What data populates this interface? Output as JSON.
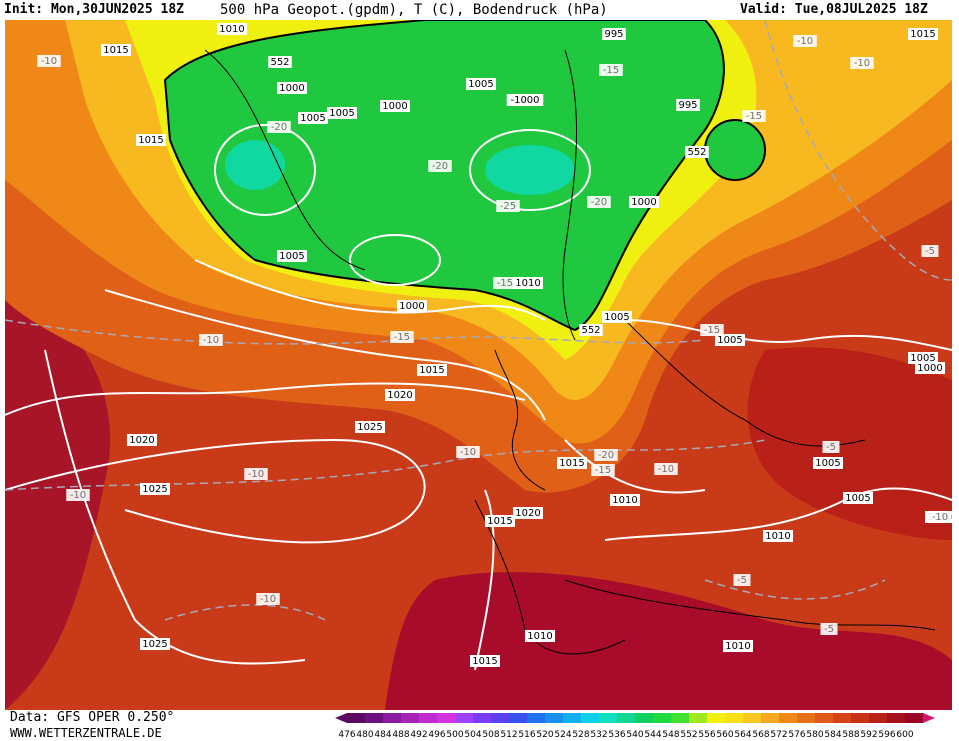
{
  "header": {
    "init": "Init: Mon,30JUN2025 18Z",
    "title": "500 hPa Geopot.(gpdm), T (C), Bodendruck (hPa)",
    "valid": "Valid: Tue,08JUL2025 18Z"
  },
  "footer": {
    "source": "Data: GFS OPER 0.250°",
    "website": "WWW.WETTERZENTRALE.DE"
  },
  "colorbar": {
    "ticks": [
      476,
      480,
      484,
      488,
      492,
      496,
      500,
      504,
      508,
      512,
      516,
      520,
      524,
      528,
      532,
      536,
      540,
      544,
      548,
      552,
      556,
      560,
      564,
      568,
      572,
      576,
      580,
      584,
      588,
      592,
      596,
      600
    ],
    "colors": [
      "#5a0a60",
      "#6e1080",
      "#8a1a9e",
      "#a623b8",
      "#c02ad0",
      "#d432e0",
      "#a040ff",
      "#7a3cf4",
      "#5a40ee",
      "#3a50ee",
      "#2070f0",
      "#1890f0",
      "#10b0f0",
      "#10d0e8",
      "#10e0c0",
      "#10d890",
      "#10d060",
      "#20d840",
      "#40e030",
      "#a0e820",
      "#f0f010",
      "#f8e018",
      "#f8c820",
      "#f8a820",
      "#f08818",
      "#e87018",
      "#e05818",
      "#d84018",
      "#c83018",
      "#b82018",
      "#a81020",
      "#980028"
    ]
  },
  "map": {
    "pressure_labels": [
      "1010",
      "1015",
      "552",
      "1000",
      "1005",
      "1005",
      "1000",
      "-1000",
      "995",
      "995",
      "552",
      "1000",
      "1005",
      "1005",
      "1015",
      "1000",
      "1015",
      "1010",
      "552",
      "1005",
      "1005",
      "1015",
      "1020",
      "1025",
      "1020",
      "1025",
      "1015",
      "1020",
      "1015",
      "1010",
      "1005",
      "1005",
      "1010",
      "1010",
      "1010",
      "1025",
      "1015",
      "1005",
      "1000",
      "1010"
    ],
    "temperature_labels": [
      "-10",
      "-20",
      "-20",
      "-25",
      "-20",
      "-15",
      "-15",
      "-15",
      "-15",
      "-5",
      "-10",
      "-15",
      "-10",
      "-10",
      "-10",
      "-10",
      "-20",
      "-15",
      "-10",
      "-10",
      "-10",
      "-5",
      "-5",
      "-10",
      "-5"
    ]
  }
}
